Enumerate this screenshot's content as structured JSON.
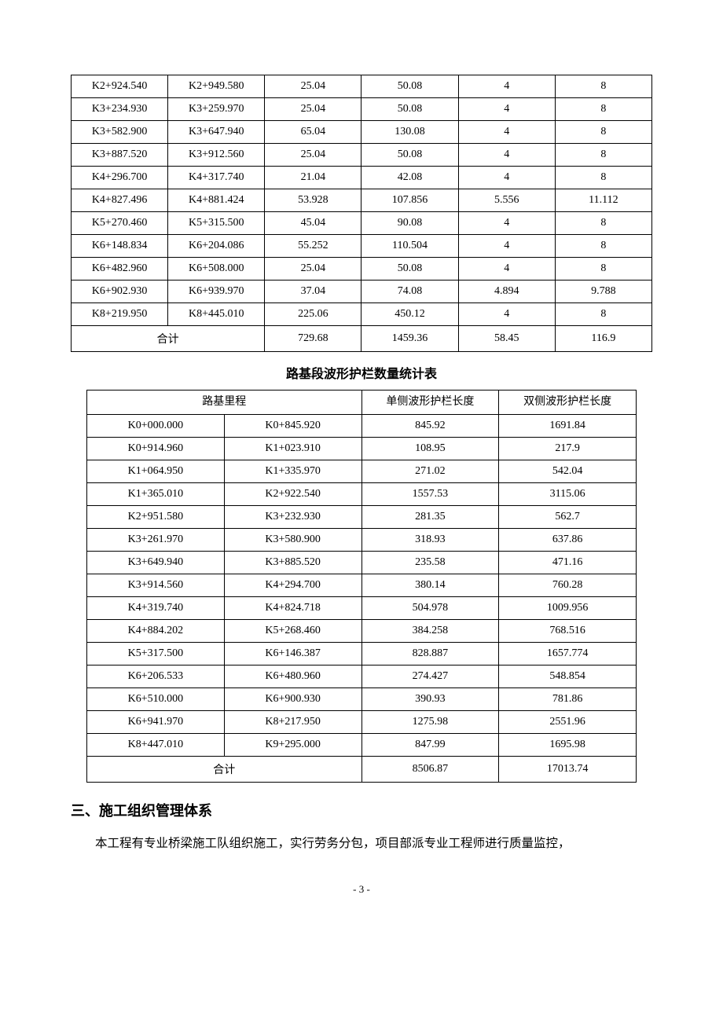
{
  "table1": {
    "rows": [
      [
        "K2+924.540",
        "K2+949.580",
        "25.04",
        "50.08",
        "4",
        "8"
      ],
      [
        "K3+234.930",
        "K3+259.970",
        "25.04",
        "50.08",
        "4",
        "8"
      ],
      [
        "K3+582.900",
        "K3+647.940",
        "65.04",
        "130.08",
        "4",
        "8"
      ],
      [
        "K3+887.520",
        "K3+912.560",
        "25.04",
        "50.08",
        "4",
        "8"
      ],
      [
        "K4+296.700",
        "K4+317.740",
        "21.04",
        "42.08",
        "4",
        "8"
      ],
      [
        "K4+827.496",
        "K4+881.424",
        "53.928",
        "107.856",
        "5.556",
        "11.112"
      ],
      [
        "K5+270.460",
        "K5+315.500",
        "45.04",
        "90.08",
        "4",
        "8"
      ],
      [
        "K6+148.834",
        "K6+204.086",
        "55.252",
        "110.504",
        "4",
        "8"
      ],
      [
        "K6+482.960",
        "K6+508.000",
        "25.04",
        "50.08",
        "4",
        "8"
      ],
      [
        "K6+902.930",
        "K6+939.970",
        "37.04",
        "74.08",
        "4.894",
        "9.788"
      ],
      [
        "K8+219.950",
        "K8+445.010",
        "225.06",
        "450.12",
        "4",
        "8"
      ]
    ],
    "total_label": "合计",
    "total_row": [
      "729.68",
      "1459.36",
      "58.45",
      "116.9"
    ]
  },
  "caption2": "路基段波形护栏数量统计表",
  "table2": {
    "header": {
      "col_range": "路基里程",
      "col_single": "单侧波形护栏长度",
      "col_double": "双侧波形护栏长度"
    },
    "rows": [
      [
        "K0+000.000",
        "K0+845.920",
        "845.92",
        "1691.84"
      ],
      [
        "K0+914.960",
        "K1+023.910",
        "108.95",
        "217.9"
      ],
      [
        "K1+064.950",
        "K1+335.970",
        "271.02",
        "542.04"
      ],
      [
        "K1+365.010",
        "K2+922.540",
        "1557.53",
        "3115.06"
      ],
      [
        "K2+951.580",
        "K3+232.930",
        "281.35",
        "562.7"
      ],
      [
        "K3+261.970",
        "K3+580.900",
        "318.93",
        "637.86"
      ],
      [
        "K3+649.940",
        "K3+885.520",
        "235.58",
        "471.16"
      ],
      [
        "K3+914.560",
        "K4+294.700",
        "380.14",
        "760.28"
      ],
      [
        "K4+319.740",
        "K4+824.718",
        "504.978",
        "1009.956"
      ],
      [
        "K4+884.202",
        "K5+268.460",
        "384.258",
        "768.516"
      ],
      [
        "K5+317.500",
        "K6+146.387",
        "828.887",
        "1657.774"
      ],
      [
        "K6+206.533",
        "K6+480.960",
        "274.427",
        "548.854"
      ],
      [
        "K6+510.000",
        "K6+900.930",
        "390.93",
        "781.86"
      ],
      [
        "K6+941.970",
        "K8+217.950",
        "1275.98",
        "2551.96"
      ],
      [
        "K8+447.010",
        "K9+295.000",
        "847.99",
        "1695.98"
      ]
    ],
    "total_label": "合计",
    "total_row": [
      "8506.87",
      "17013.74"
    ]
  },
  "section_heading": "三、施工组织管理体系",
  "paragraph_text": "本工程有专业桥梁施工队组织施工，实行劳务分包，项目部派专业工程师进行质量监控，",
  "page_number": "- 3 -"
}
